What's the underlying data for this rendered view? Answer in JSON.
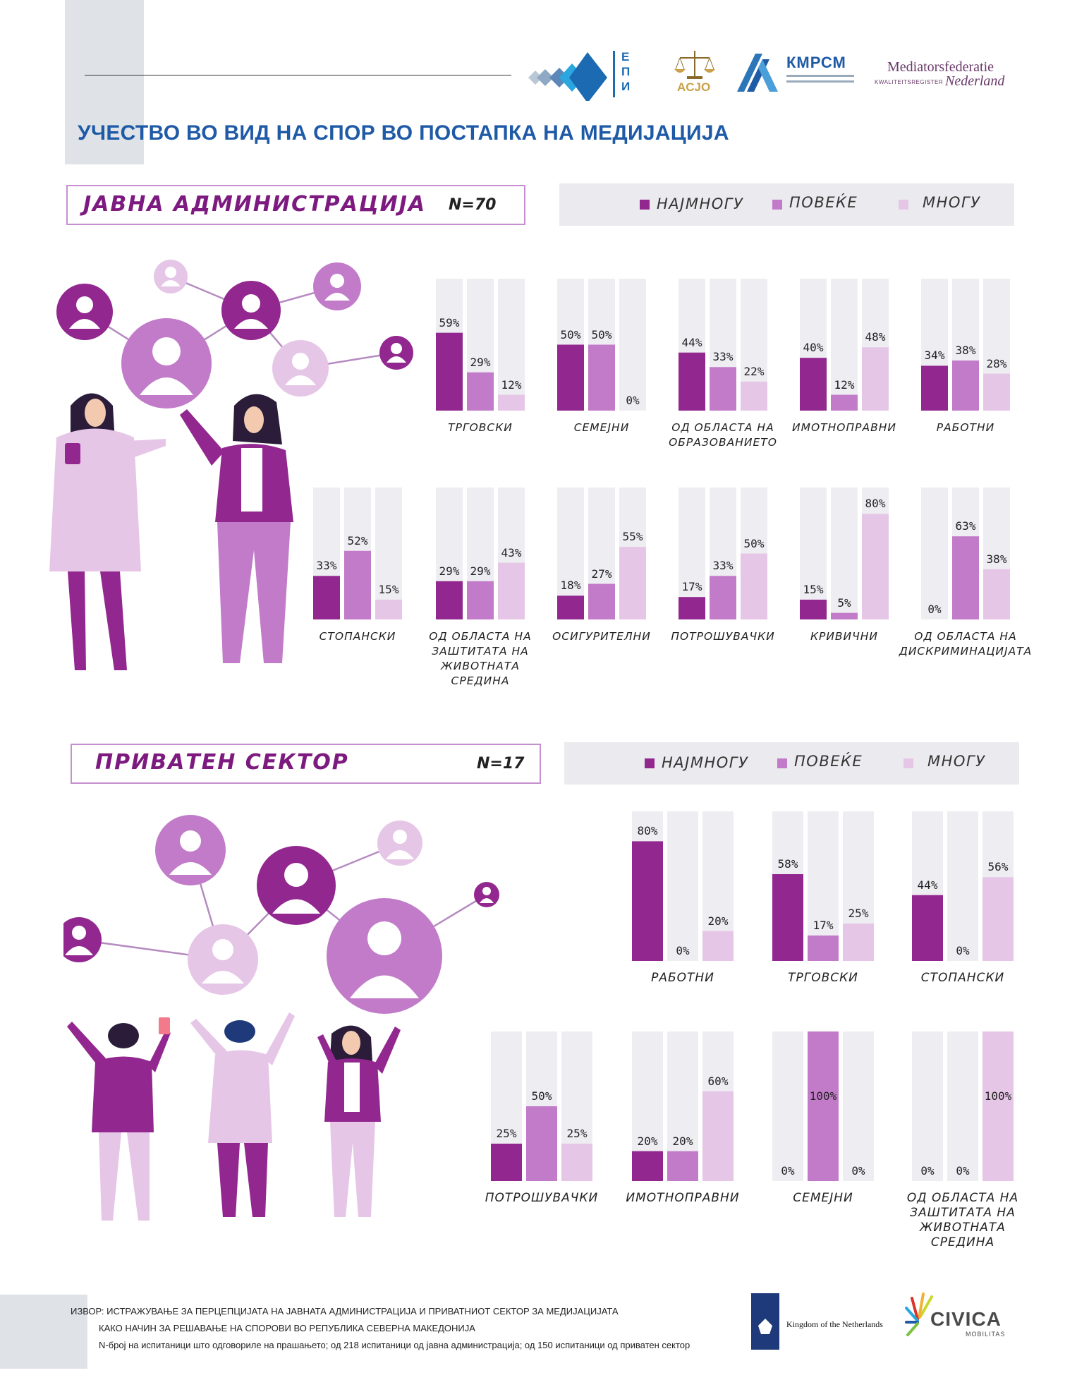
{
  "header": {
    "title": "УЧЕСТВО ВО ВИД НА СПОР ВО ПОСТАПКА НА МЕДИЈАЦИЈА",
    "logos": {
      "epi": "ЕПИ",
      "acjo": "ACJO",
      "kmpcm": "КМРСМ",
      "mediators_1": "Mediatorsfederatie",
      "mediators_2": "KWALITEITSREGISTER",
      "mediators_3": "Nederland"
    }
  },
  "legend": {
    "most": "НАЈМНОГУ",
    "more": "ПОВЕЌЕ",
    "much": "МНОГУ"
  },
  "colors": {
    "most": "#92278f",
    "more": "#c27bc9",
    "much": "#e6c6e6",
    "bar_bg": "#eeedf2",
    "accent_blue": "#1f5aa6"
  },
  "sections": [
    {
      "title": "ЈАВНА АДМИНИСТРАЦИЈА",
      "n": "N=70"
    },
    {
      "title": "ПРИВАТЕН СЕКТОР",
      "n": "N=17"
    }
  ],
  "chart_data": [
    {
      "type": "bar",
      "title": "ЈАВНА АДМИНИСТРАЦИЈА",
      "unit": "%",
      "series_names": [
        "НАЈМНОГУ",
        "ПОВЕЌЕ",
        "МНОГУ"
      ],
      "ylim": [
        0,
        100
      ],
      "groups": [
        {
          "label": "ТРГОВСКИ",
          "values": [
            59,
            29,
            12
          ]
        },
        {
          "label": "СЕМЕЈНИ",
          "values": [
            50,
            50,
            0
          ]
        },
        {
          "label": "ОД ОБЛАСТА НА ОБРАЗОВАНИЕТО",
          "values": [
            44,
            33,
            22
          ]
        },
        {
          "label": "ИМОТНОПРАВНИ",
          "values": [
            40,
            12,
            48
          ]
        },
        {
          "label": "РАБОТНИ",
          "values": [
            34,
            38,
            28
          ]
        },
        {
          "label": "СТОПАНСКИ",
          "values": [
            33,
            52,
            15
          ]
        },
        {
          "label": "ОД ОБЛАСТА НА ЗАШТИТАТА НА ЖИВОТНАТА СРЕДИНА",
          "values": [
            29,
            29,
            43
          ]
        },
        {
          "label": "ОСИГУРИТЕЛНИ",
          "values": [
            18,
            27,
            55
          ]
        },
        {
          "label": "ПОТРОШУВАЧКИ",
          "values": [
            17,
            33,
            50
          ]
        },
        {
          "label": "КРИВИЧНИ",
          "values": [
            15,
            5,
            80
          ]
        },
        {
          "label": "ОД ОБЛАСТА НА ДИСКРИМИНАЦИЈАТА",
          "values": [
            0,
            63,
            38
          ]
        }
      ]
    },
    {
      "type": "bar",
      "title": "ПРИВАТЕН СЕКТОР",
      "unit": "%",
      "series_names": [
        "НАЈМНОГУ",
        "ПОВЕЌЕ",
        "МНОГУ"
      ],
      "ylim": [
        0,
        100
      ],
      "groups": [
        {
          "label": "РАБОТНИ",
          "values": [
            80,
            0,
            20
          ]
        },
        {
          "label": "ТРГОВСКИ",
          "values": [
            58,
            17,
            25
          ]
        },
        {
          "label": "СТОПАНСКИ",
          "values": [
            44,
            0,
            56
          ]
        },
        {
          "label": "ПОТРОШУВАЧКИ",
          "values": [
            25,
            50,
            25
          ]
        },
        {
          "label": "ИМОТНОПРАВНИ",
          "values": [
            20,
            20,
            60
          ]
        },
        {
          "label": "СЕМЕЈНИ",
          "values": [
            0,
            100,
            0
          ]
        },
        {
          "label": "ОД ОБЛАСТА НА ЗАШТИТАТА НА ЖИВОТНАТА СРЕДИНА",
          "values": [
            0,
            0,
            100
          ]
        }
      ]
    }
  ],
  "footer": {
    "line1": "ИЗВОР: ИСТРАЖУВАЊЕ ЗА ПЕРЦЕПЦИЈАТА НА ЈАВНАТА АДМИНИСТРАЦИЈА И ПРИВАТНИОТ СЕКТОР ЗА МЕДИЈАЦИЈАТА",
    "line2": "КАКО НАЧИН ЗА РЕШАВАЊЕ НА СПОРОВИ ВО РЕПУБЛИКА СЕВЕРНА МАКЕДОНИЈА",
    "line3": "N-број на испитаници што одговориле на прашањето; од 218 испитаници од јавна администрација; од 150 испитаници од приватен сектор",
    "nl": "Kingdom of the Netherlands",
    "civica": "CIVICA",
    "civica_sub": "MOBILITAS"
  }
}
